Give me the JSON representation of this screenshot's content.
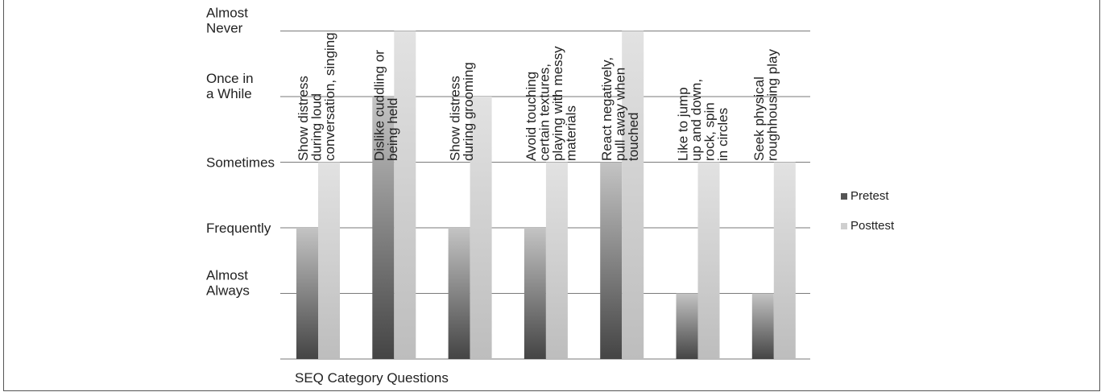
{
  "chart_data": {
    "type": "bar",
    "xlabel": "SEQ Category Questions",
    "ylabel": "",
    "y_tick_labels": [
      [
        "Almost",
        "Always"
      ],
      [
        "Frequently"
      ],
      [
        "Sometimes"
      ],
      [
        "Once in",
        "a While"
      ],
      [
        "Almost",
        "Never"
      ]
    ],
    "ylim": [
      0,
      5
    ],
    "categories": [
      [
        "Show distress",
        "during loud",
        "conversation, singing"
      ],
      [
        "Dislike cuddling or",
        "being held"
      ],
      [
        "Show distress",
        "during grooming"
      ],
      [
        "Avoid touching",
        "certain textures,",
        "playing with messy",
        "materials"
      ],
      [
        "React negatively,",
        "pull away when",
        "touched"
      ],
      [
        "Like to jump",
        "up and down,",
        "rock, spin",
        "in circles"
      ],
      [
        "Seek physical",
        "roughhousing play"
      ]
    ],
    "series": [
      {
        "name": "Pretest",
        "values": [
          2,
          4,
          2,
          2,
          3,
          1,
          1
        ]
      },
      {
        "name": "Posttest",
        "values": [
          3,
          5,
          4,
          3,
          5,
          3,
          3
        ]
      }
    ],
    "legend_position": "right",
    "grid": true,
    "colors": {
      "pretest_dark": "#4a4a4a",
      "pretest_light": "#bdbdbd",
      "posttest": "#d6d6d6",
      "grid": "#7a7a7a"
    }
  }
}
